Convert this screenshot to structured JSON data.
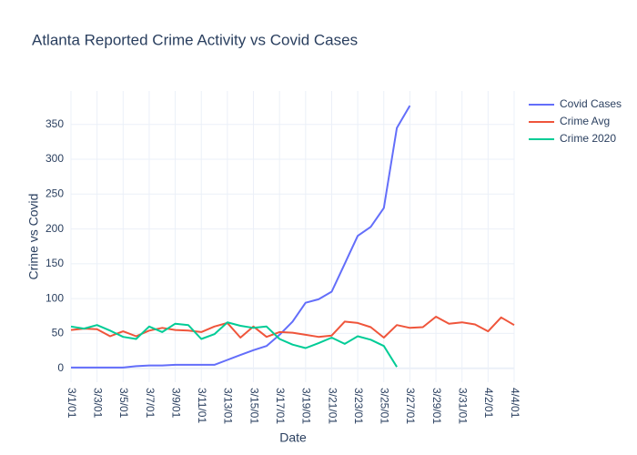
{
  "chart_data": {
    "type": "line",
    "title": "Atlanta Reported Crime Activity vs Covid Cases",
    "x_label": "Date",
    "y_label": "Crime vs Covid",
    "categories": [
      "3/1/01",
      null,
      "3/3/01",
      null,
      "3/5/01",
      null,
      "3/7/01",
      null,
      "3/9/01",
      null,
      "3/11/01",
      null,
      "3/13/01",
      null,
      "3/15/01",
      null,
      "3/17/01",
      null,
      "3/19/01",
      null,
      "3/21/01",
      null,
      "3/23/01",
      null,
      "3/25/01",
      null,
      "3/27/01",
      null,
      "3/29/01",
      null,
      "3/31/01",
      null,
      "4/2/01",
      null,
      "4/4/01"
    ],
    "series": [
      {
        "name": "Covid Cases",
        "color": "#636efa",
        "values": [
          1,
          1,
          1,
          1,
          1,
          3,
          4,
          4,
          5,
          5,
          5,
          5,
          12,
          19,
          26,
          32,
          48,
          67,
          94,
          99,
          110,
          150,
          190,
          203,
          230,
          345,
          377,
          null,
          null,
          null,
          null,
          null,
          null,
          null,
          null
        ]
      },
      {
        "name": "Crime Avg",
        "color": "#EF553B",
        "values": [
          55,
          57,
          56,
          46,
          53,
          46,
          54,
          58,
          55,
          54,
          52,
          60,
          65,
          44,
          60,
          45,
          52,
          51,
          48,
          45,
          47,
          67,
          65,
          59,
          44,
          62,
          58,
          59,
          74,
          64,
          66,
          63,
          53,
          73,
          62
        ]
      },
      {
        "name": "Crime 2020",
        "color": "#00cc96",
        "values": [
          60,
          57,
          62,
          54,
          45,
          42,
          60,
          52,
          64,
          62,
          42,
          49,
          66,
          61,
          58,
          60,
          42,
          34,
          29,
          36,
          44,
          35,
          46,
          41,
          32,
          2,
          null,
          null,
          null,
          null,
          null,
          null,
          null,
          null,
          null
        ]
      }
    ],
    "ylim": [
      -20,
      398
    ],
    "yticks": [
      0,
      50,
      100,
      150,
      200,
      250,
      300,
      350
    ],
    "grid": true,
    "legend": "right"
  }
}
